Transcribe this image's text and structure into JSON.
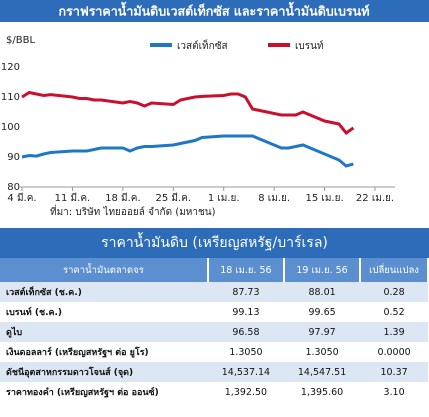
{
  "chart_data": {
    "type": "line",
    "title": "กราฟราคาน้ำมันดิบเวสต์เท็กซัส และราคาน้ำมันดิบเบรนท์",
    "y_label": "$/BBL",
    "source": "ที่มา: บริษัท ไทยออยล์ จำกัด (มหาชน)",
    "x": [
      0,
      1,
      2,
      3,
      4,
      7,
      8,
      9,
      10,
      11,
      14,
      15,
      16,
      17,
      18,
      21,
      22,
      23,
      24,
      25,
      28,
      29,
      30,
      31,
      32,
      35,
      36,
      37,
      38,
      39,
      42,
      43,
      44,
      45,
      46
    ],
    "series": [
      {
        "name": "เวสต์เท็กซัส",
        "color": "#1f77c8",
        "values": [
          90,
          90.5,
          90.3,
          91,
          91.5,
          92,
          92,
          92,
          92.5,
          93,
          93,
          92,
          93,
          93.5,
          93.5,
          94,
          94.5,
          95,
          95.5,
          96.5,
          97,
          97,
          97,
          97,
          97,
          94,
          93,
          93,
          93.5,
          94,
          91,
          90,
          89,
          87,
          87.7
        ]
      },
      {
        "name": "เบรนท์",
        "color": "#c8102e",
        "values": [
          110,
          111.5,
          111,
          110.5,
          110.8,
          110,
          109.5,
          109.5,
          109,
          109,
          108,
          108.5,
          108,
          107,
          108,
          107.5,
          109,
          109.5,
          110,
          110.2,
          110.5,
          111,
          111,
          110,
          106,
          104.5,
          104,
          104,
          104,
          105,
          102,
          101.5,
          101,
          98,
          99.7
        ]
      }
    ],
    "xlim": [
      0,
      49
    ],
    "xticks": [
      {
        "value": 0,
        "label": "4 มี.ค."
      },
      {
        "value": 7,
        "label": "11 มี.ค."
      },
      {
        "value": 14,
        "label": "18 มี.ค."
      },
      {
        "value": 21,
        "label": "25 มี.ค."
      },
      {
        "value": 28,
        "label": "1 เม.ย."
      },
      {
        "value": 35,
        "label": "8 เม.ย."
      },
      {
        "value": 42,
        "label": "15 เม.ย."
      },
      {
        "value": 49,
        "label": "22 เม.ย."
      }
    ],
    "ylim": [
      80,
      125
    ],
    "yticks": [
      80,
      90,
      100,
      110,
      120
    ],
    "legend": "top"
  },
  "table": {
    "title": "ราคาน้ำมันดิบ (เหรียญสหรัฐ/บาร์เรล)",
    "header": [
      "ราคาน้ำมันตลาดจร",
      "18 เม.ย. 56",
      "19 เม.ย. 56",
      "เปลี่ยนแปลง"
    ],
    "rows": [
      [
        "เวสต์เท็กซัส (ช.ค.)",
        "87.73",
        "88.01",
        "0.28"
      ],
      [
        "เบรนท์ (ช.ค.)",
        "99.13",
        "99.65",
        "0.52"
      ],
      [
        "ดูไบ",
        "96.58",
        "97.97",
        "1.39"
      ],
      [
        "เงินดอลลาร์ (เหรียญสหรัฐฯ ต่อ ยูโร)",
        "1.3050",
        "1.3050",
        "0.0000"
      ],
      [
        "ดัชนีอุตสาหกรรมดาวโจนส์ (จุด)",
        "14,537.14",
        "14,547.51",
        "10.37"
      ],
      [
        "ราคาทองคำ (เหรียญสหรัฐฯ ต่อ ออนซ์)",
        "1,392.50",
        "1,395.60",
        "3.10"
      ]
    ]
  }
}
